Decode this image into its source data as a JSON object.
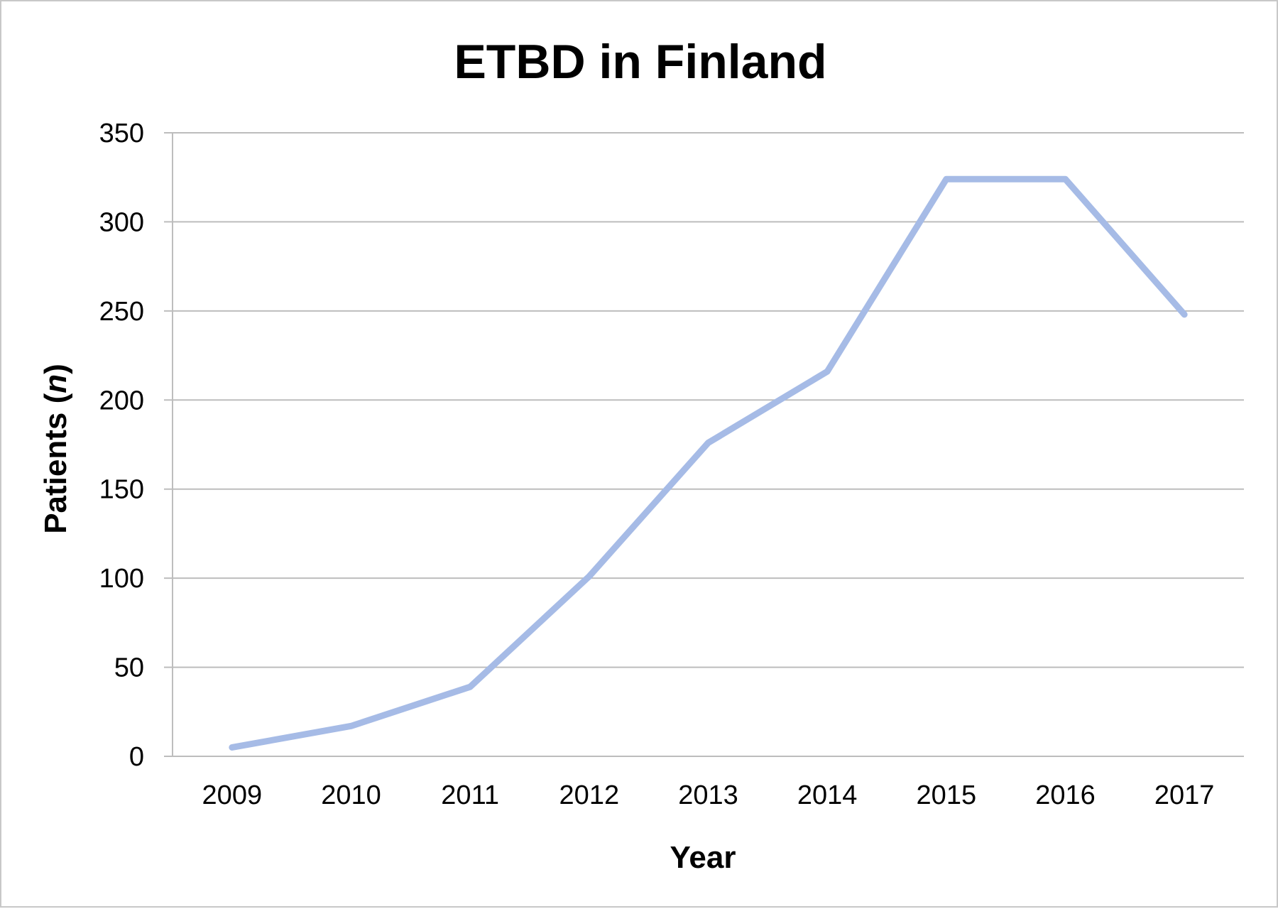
{
  "chart_data": {
    "type": "line",
    "title": "ETBD in Finland",
    "xlabel": "Year",
    "ylabel_main": "Patients (",
    "ylabel_var": "n",
    "ylabel_close": ")",
    "ylabel": "Patients (n)",
    "categories": [
      "2009",
      "2010",
      "2011",
      "2012",
      "2013",
      "2014",
      "2015",
      "2016",
      "2017"
    ],
    "series": [
      {
        "values": [
          5,
          17,
          39,
          101,
          176,
          216,
          324,
          324,
          248
        ]
      }
    ],
    "ylim": [
      0,
      350
    ],
    "yticks": [
      "0",
      "50",
      "100",
      "150",
      "200",
      "250",
      "300",
      "350"
    ],
    "grid": true,
    "legend": "none",
    "colors": {
      "line": "#a6bbe6"
    }
  }
}
